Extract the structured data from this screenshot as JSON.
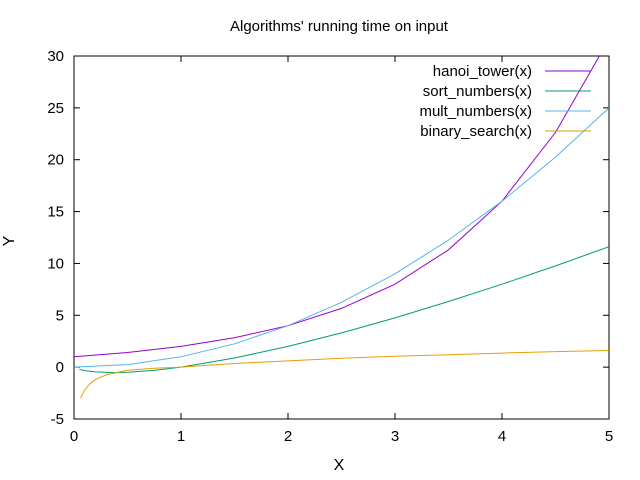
{
  "chart_data": {
    "type": "line",
    "title": "Algorithms' running time on input",
    "xlabel": "X",
    "ylabel": "Y",
    "xlim": [
      0,
      5
    ],
    "ylim": [
      -5,
      30
    ],
    "xticks": [
      "0",
      "1",
      "2",
      "3",
      "4",
      "5"
    ],
    "yticks": [
      "-5",
      "0",
      "5",
      "10",
      "15",
      "20",
      "25",
      "30"
    ],
    "grid": false,
    "legend_position": "top-right",
    "series": [
      {
        "name": "hanoi_tower(x)",
        "color": "#9400d3",
        "x": [
          0.0,
          0.5,
          1.0,
          1.5,
          2.0,
          2.5,
          3.0,
          3.5,
          4.0,
          4.5,
          4.91
        ],
        "y": [
          1.0,
          1.41,
          2.0,
          2.83,
          4.0,
          5.66,
          8.0,
          11.31,
          16.0,
          22.63,
          30.0
        ]
      },
      {
        "name": "sort_numbers(x)",
        "color": "#009e73",
        "x": [
          0.05,
          0.1,
          0.2,
          0.37,
          0.5,
          0.75,
          1.0,
          1.5,
          2.0,
          2.5,
          3.0,
          3.5,
          4.0,
          4.5,
          5.0
        ],
        "y": [
          -0.22,
          -0.33,
          -0.46,
          -0.53,
          -0.5,
          -0.31,
          0.0,
          0.88,
          2.0,
          3.3,
          4.75,
          6.33,
          8.0,
          9.76,
          11.61
        ]
      },
      {
        "name": "mult_numbers(x)",
        "color": "#56b4e9",
        "x": [
          0.0,
          0.5,
          1.0,
          1.5,
          2.0,
          2.5,
          3.0,
          3.5,
          4.0,
          4.5,
          5.0
        ],
        "y": [
          0.0,
          0.25,
          1.0,
          2.25,
          4.0,
          6.25,
          9.0,
          12.25,
          16.0,
          20.25,
          25.0
        ]
      },
      {
        "name": "binary_search(x)",
        "color": "#e69f00",
        "x": [
          0.06,
          0.1,
          0.15,
          0.2,
          0.3,
          0.5,
          0.75,
          1.0,
          1.5,
          2.0,
          2.5,
          3.0,
          3.5,
          4.0,
          4.5,
          5.0
        ],
        "y": [
          -3.0,
          -2.2,
          -1.6,
          -1.2,
          -0.75,
          -0.3,
          -0.1,
          0.0,
          0.35,
          0.6,
          0.85,
          1.05,
          1.2,
          1.35,
          1.5,
          1.6
        ]
      }
    ]
  }
}
